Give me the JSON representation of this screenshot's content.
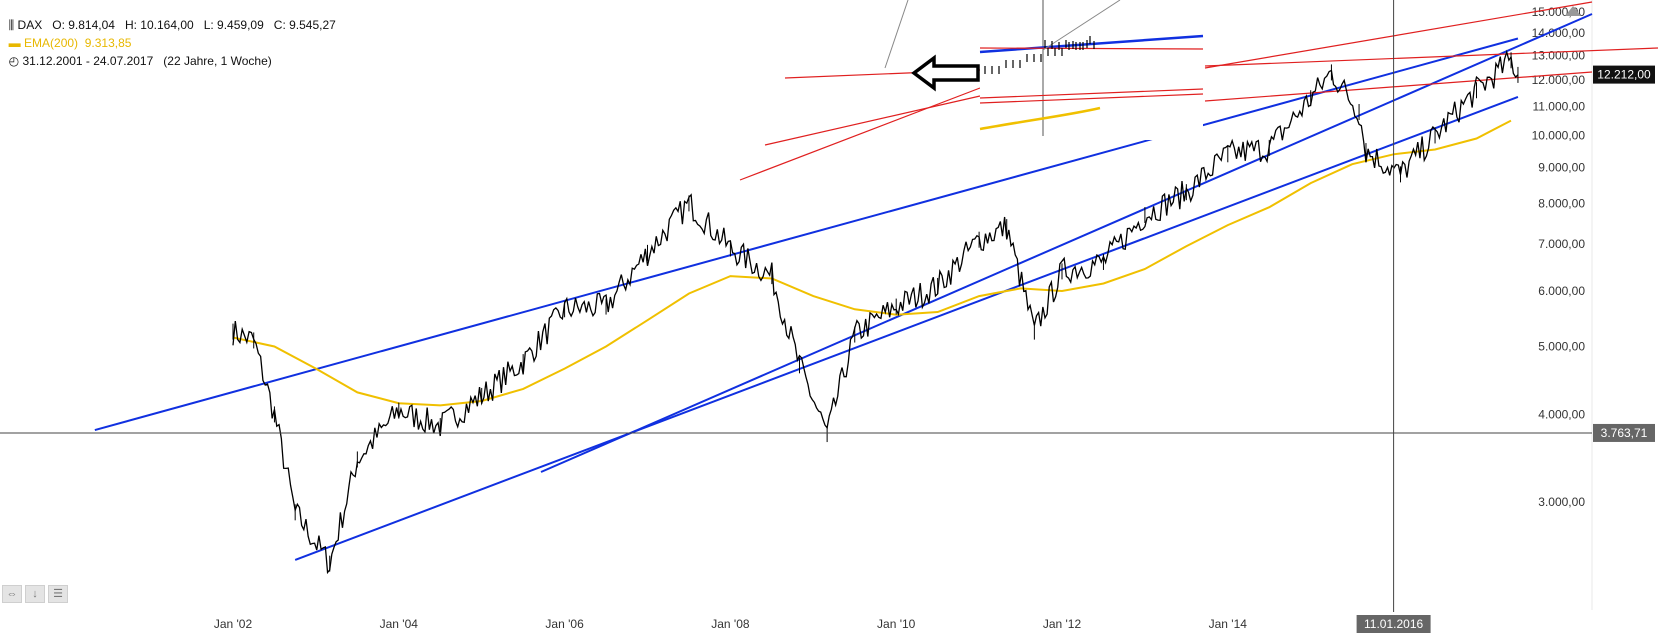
{
  "header": {
    "symbol": "DAX",
    "open": "O: 9.814,04",
    "high": "H: 10.164,00",
    "low": "L: 9.459,09",
    "close": "C: 9.545,27",
    "ema_label": "EMA(200)",
    "ema_value": "9.313,85",
    "date_range": "31.12.2001 - 24.07.2017",
    "period": "(22 Jahre, 1 Woche)"
  },
  "colors": {
    "price": "#000000",
    "ema": "#f0c000",
    "channel": "#1030e0",
    "trend": "#e02020",
    "crosshair": "#444444",
    "tag_dark": "#111111",
    "tag_gray": "#666666"
  },
  "chart_data": {
    "type": "line",
    "title": "",
    "xlabel": "",
    "ylabel": "",
    "y_scale": "log",
    "xlim": [
      "2002-01-01",
      "2017-07-24"
    ],
    "ylim": [
      2400,
      16000
    ],
    "x_ticks": [
      "Jan '02",
      "Jan '04",
      "Jan '06",
      "Jan '08",
      "Jan '10",
      "Jan '12",
      "Jan '14"
    ],
    "y_ticks": [
      "3.000,00",
      "4.000,00",
      "5.000,00",
      "6.000,00",
      "7.000,00",
      "8.000,00",
      "9.000,00",
      "10.000,00",
      "11.000,00",
      "12.000,00",
      "13.000,00",
      "14.000,00",
      "15.000,00"
    ],
    "y_tick_values": [
      3000,
      4000,
      5000,
      6000,
      7000,
      8000,
      9000,
      10000,
      11000,
      12000,
      13000,
      14000,
      15000
    ],
    "crosshair": {
      "x_label": "11.01.2016",
      "y_label": "3.763,71",
      "y_value": 3763.71
    },
    "last_price_label": "12.212,00",
    "last_price_value": 12212,
    "series": [
      {
        "name": "DAX",
        "x": [
          "2002-01",
          "2002-04",
          "2002-07",
          "2002-10",
          "2003-03",
          "2003-07",
          "2004-01",
          "2004-07",
          "2005-01",
          "2005-07",
          "2006-01",
          "2006-07",
          "2007-01",
          "2007-07",
          "2008-01",
          "2008-07",
          "2008-11",
          "2009-03",
          "2009-07",
          "2010-01",
          "2010-07",
          "2011-01",
          "2011-05",
          "2011-09",
          "2012-01",
          "2012-07",
          "2013-01",
          "2013-07",
          "2014-01",
          "2014-07",
          "2015-01",
          "2015-04",
          "2015-08",
          "2015-09",
          "2016-02",
          "2016-07",
          "2017-01",
          "2017-06",
          "2017-07"
        ],
        "values": [
          5250,
          5100,
          4000,
          2900,
          2450,
          3450,
          4050,
          3850,
          4250,
          4750,
          5650,
          5700,
          6800,
          8000,
          6900,
          6300,
          4700,
          3750,
          5200,
          5700,
          6100,
          7100,
          7400,
          5250,
          6400,
          6600,
          7700,
          8300,
          9400,
          9600,
          11300,
          12300,
          10800,
          9500,
          8800,
          10000,
          11600,
          12800,
          12200
        ]
      },
      {
        "name": "EMA(200)",
        "x": [
          "2002-01",
          "2002-07",
          "2003-01",
          "2003-07",
          "2004-01",
          "2004-07",
          "2005-01",
          "2005-07",
          "2006-01",
          "2006-07",
          "2007-01",
          "2007-07",
          "2008-01",
          "2008-07",
          "2009-01",
          "2009-07",
          "2010-01",
          "2010-07",
          "2011-01",
          "2011-07",
          "2012-01",
          "2012-07",
          "2013-01",
          "2013-07",
          "2014-01",
          "2014-07",
          "2015-01",
          "2015-07",
          "2016-01",
          "2016-07",
          "2017-01",
          "2017-06"
        ],
        "values": [
          5150,
          5000,
          4650,
          4300,
          4150,
          4120,
          4180,
          4350,
          4650,
          5000,
          5450,
          5950,
          6300,
          6250,
          5900,
          5650,
          5550,
          5600,
          5900,
          6050,
          6000,
          6150,
          6450,
          6950,
          7450,
          7900,
          8550,
          9100,
          9400,
          9550,
          9900,
          10500
        ]
      }
    ],
    "drawings": {
      "channel_upper": {
        "x": [
          "2000-05",
          "2017-07"
        ],
        "values": [
          3800,
          13750
        ]
      },
      "channel_lower": {
        "x": [
          "2002-10",
          "2017-07"
        ],
        "values": [
          2480,
          11350
        ]
      },
      "extended_upper": {
        "x": [
          "2017-07",
          "2032-01"
        ],
        "values": [
          13750,
          14950
        ]
      },
      "extended_lower": {
        "x": [
          "2017-07",
          "2032-01"
        ],
        "values": [
          11350,
          15100
        ]
      }
    }
  },
  "toolbar": {
    "btn1": "⇔",
    "btn2": "↓",
    "btn3": "☰"
  }
}
